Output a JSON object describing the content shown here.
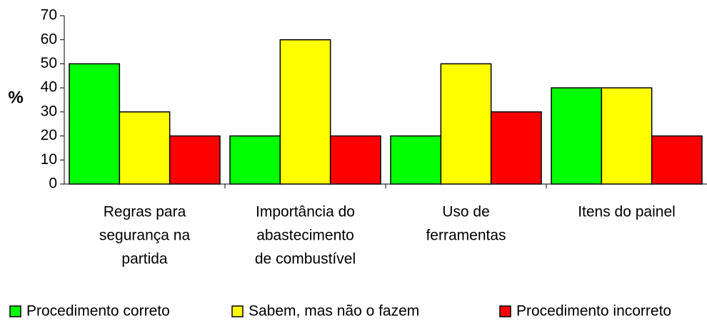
{
  "chart_data": {
    "type": "bar",
    "y_label": "%",
    "categories": [
      [
        "Regras para",
        "segurança na",
        "partida"
      ],
      [
        "Importância do",
        "abastecimento",
        "de combustível"
      ],
      [
        "Uso de",
        "ferramentas"
      ],
      [
        "Itens do painel"
      ]
    ],
    "series": [
      {
        "name": "Procedimento correto",
        "color": "#00ff00",
        "values": [
          50,
          20,
          20,
          40
        ]
      },
      {
        "name": "Sabem, mas não o fazem",
        "color": "#ffff00",
        "values": [
          30,
          60,
          50,
          40
        ]
      },
      {
        "name": "Procedimento incorreto",
        "color": "#ff0000",
        "values": [
          20,
          20,
          30,
          20
        ]
      }
    ],
    "ylim": [
      0,
      70
    ],
    "yticks": [
      0,
      10,
      20,
      30,
      40,
      50,
      60,
      70
    ]
  }
}
